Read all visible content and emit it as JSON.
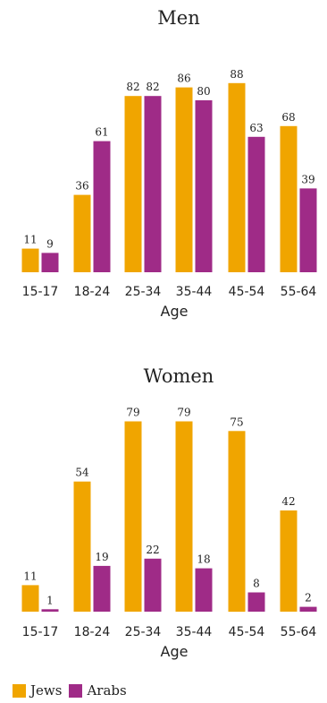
{
  "colors": {
    "jews": "#F0A500",
    "arabs": "#9F2B87"
  },
  "legend": [
    {
      "label": "Jews",
      "color": "#F0A500"
    },
    {
      "label": "Arabs",
      "color": "#9F2B87"
    }
  ],
  "chart_data": [
    {
      "type": "bar",
      "title": "Men",
      "xlabel": "Age",
      "ylabel": "",
      "ylim": [
        0,
        100
      ],
      "grid": false,
      "legend_position": "bottom-left",
      "categories": [
        "15-17",
        "18-24",
        "25-34",
        "35-44",
        "45-54",
        "55-64"
      ],
      "series": [
        {
          "name": "Jews",
          "values": [
            11,
            36,
            82,
            86,
            88,
            68
          ]
        },
        {
          "name": "Arabs",
          "values": [
            9,
            61,
            82,
            80,
            63,
            39
          ]
        }
      ]
    },
    {
      "type": "bar",
      "title": "Women",
      "xlabel": "Age",
      "ylabel": "",
      "ylim": [
        0,
        100
      ],
      "grid": false,
      "legend_position": "bottom-left",
      "categories": [
        "15-17",
        "18-24",
        "25-34",
        "35-44",
        "45-54",
        "55-64"
      ],
      "series": [
        {
          "name": "Jews",
          "values": [
            11,
            54,
            79,
            79,
            75,
            42
          ]
        },
        {
          "name": "Arabs",
          "values": [
            1,
            19,
            22,
            18,
            8,
            2
          ]
        }
      ]
    }
  ]
}
